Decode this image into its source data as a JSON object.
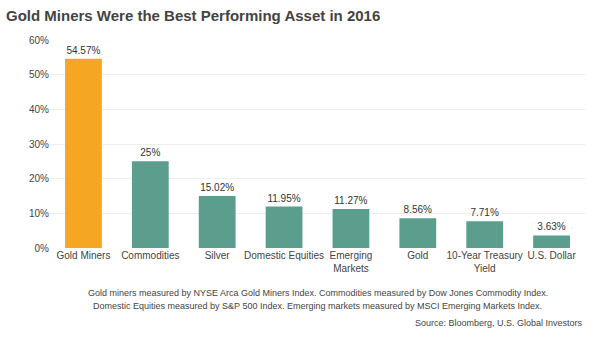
{
  "chart_data": {
    "type": "bar",
    "title": "Gold Miners Were the Best Performing Asset in 2016",
    "categories": [
      "Gold Miners",
      "Commodities",
      "Silver",
      "Domestic Equities",
      "Emerging\nMarkets",
      "Gold",
      "10-Year Treasury\nYield",
      "U.S. Dollar"
    ],
    "values": [
      54.57,
      25.0,
      15.02,
      11.95,
      11.27,
      8.56,
      7.71,
      3.63
    ],
    "value_labels": [
      "54.57%",
      "25%",
      "15.02%",
      "11.95%",
      "11.27%",
      "8.56%",
      "7.71%",
      "3.63%"
    ],
    "colors": [
      "#F5A623",
      "#5B9E8D",
      "#5B9E8D",
      "#5B9E8D",
      "#5B9E8D",
      "#5B9E8D",
      "#5B9E8D",
      "#5B9E8D"
    ],
    "ylim": [
      0,
      60
    ],
    "yticks": [
      {
        "value": 0,
        "label": "0%"
      },
      {
        "value": 10,
        "label": "10%"
      },
      {
        "value": 20,
        "label": "20%"
      },
      {
        "value": 30,
        "label": "30%"
      },
      {
        "value": 40,
        "label": "40%"
      },
      {
        "value": 50,
        "label": "50%"
      },
      {
        "value": 60,
        "label": "60%"
      }
    ],
    "grid": true,
    "data_labels": true,
    "annotations": [
      "Gold miners measured by NYSE Arca Gold Miners Index. Commodities measured by Dow Jones Commodity Index.",
      "Domestic Equities measured by S&P 500 Index. Emerging markets measured by MSCI Emerging Markets Index.",
      "Source: Bloomberg, U.S. Global Investors"
    ]
  }
}
